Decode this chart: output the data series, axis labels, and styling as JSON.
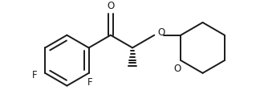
{
  "bg_color": "#ffffff",
  "line_color": "#1a1a1a",
  "line_width": 1.4,
  "figsize": [
    3.24,
    1.38
  ],
  "dpi": 100,
  "font_size": 8.5,
  "xlim": [
    0.0,
    10.0
  ],
  "ylim": [
    0.0,
    4.3
  ]
}
